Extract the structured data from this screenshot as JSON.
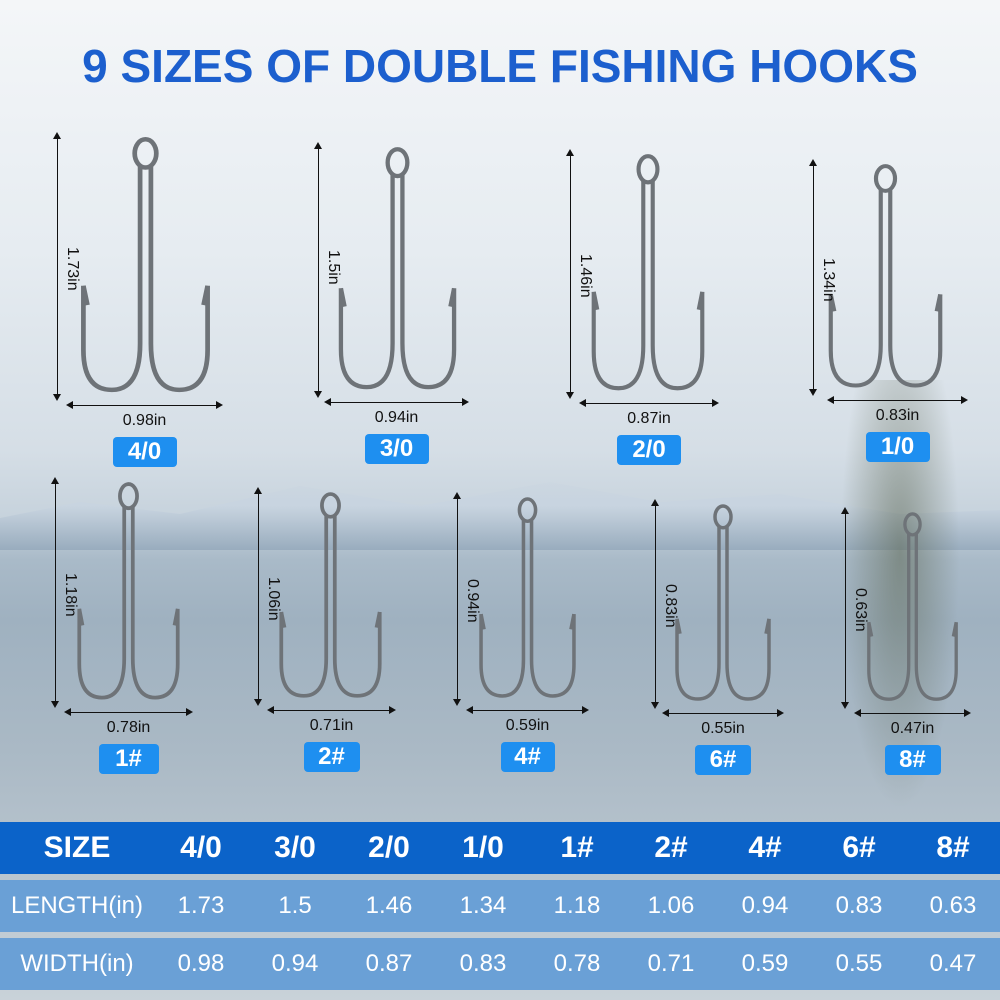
{
  "title": "9 SIZES OF DOUBLE FISHING HOOKS",
  "hooks": [
    {
      "size": "4/0",
      "length": "1.73in",
      "width": "0.98in"
    },
    {
      "size": "3/0",
      "length": "1.5in",
      "width": "0.94in"
    },
    {
      "size": "2/0",
      "length": "1.46in",
      "width": "0.87in"
    },
    {
      "size": "1/0",
      "length": "1.34in",
      "width": "0.83in"
    },
    {
      "size": "1#",
      "length": "1.18in",
      "width": "0.78in"
    },
    {
      "size": "2#",
      "length": "1.06in",
      "width": "0.71in"
    },
    {
      "size": "4#",
      "length": "0.94in",
      "width": "0.59in"
    },
    {
      "size": "6#",
      "length": "0.83in",
      "width": "0.55in"
    },
    {
      "size": "8#",
      "length": "0.63in",
      "width": "0.47in"
    }
  ],
  "table": {
    "header": [
      "SIZE",
      "4/0",
      "3/0",
      "2/0",
      "1/0",
      "1#",
      "2#",
      "4#",
      "6#",
      "8#"
    ],
    "rows": [
      [
        "LENGTH(in)",
        "1.73",
        "1.5",
        "1.46",
        "1.34",
        "1.18",
        "1.06",
        "0.94",
        "0.83",
        "0.63"
      ],
      [
        "WIDTH(in)",
        "0.98",
        "0.94",
        "0.87",
        "0.83",
        "0.78",
        "0.71",
        "0.59",
        "0.55",
        "0.47"
      ]
    ]
  },
  "colors": {
    "title": "#1c5fce",
    "badge": "#1e8ff0",
    "table_header": "#0b63c9",
    "table_row": "#6aa0d6"
  }
}
